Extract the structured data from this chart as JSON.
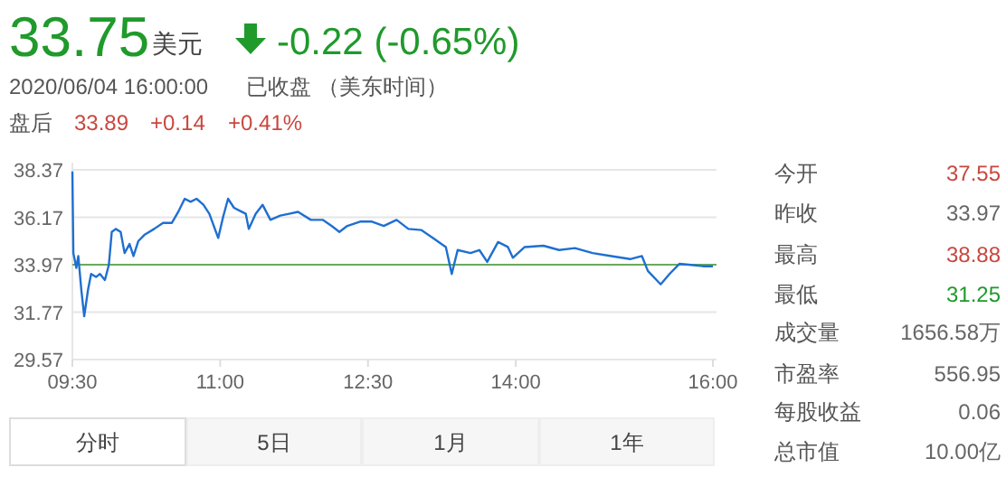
{
  "chart_data": {
    "type": "line",
    "color": "#1f6fd1",
    "grid": "y",
    "xlim": [
      9.5,
      16
    ],
    "ylim": [
      29.57,
      38.37
    ],
    "xticks": [
      {
        "value": 9.5,
        "label": "09:30"
      },
      {
        "value": 11,
        "label": "11:00"
      },
      {
        "value": 12.5,
        "label": "12:30"
      },
      {
        "value": 14,
        "label": "14:00"
      },
      {
        "value": 16,
        "label": "16:00"
      }
    ],
    "yticks": [
      {
        "value": 38.37,
        "label": "38.37"
      },
      {
        "value": 36.17,
        "label": "36.17"
      },
      {
        "value": 33.97,
        "label": "33.97"
      },
      {
        "value": 31.77,
        "label": "31.77"
      },
      {
        "value": 29.57,
        "label": "29.57"
      }
    ],
    "ref_lines": [
      {
        "axis": "y",
        "value": 33.97,
        "color": "#6aaa5a"
      }
    ],
    "x": [
      9.5,
      9.51,
      9.54,
      9.56,
      9.59,
      9.62,
      9.66,
      9.69,
      9.74,
      9.78,
      9.83,
      9.87,
      9.9,
      9.94,
      9.99,
      10.03,
      10.08,
      10.12,
      10.17,
      10.23,
      10.33,
      10.42,
      10.51,
      10.58,
      10.64,
      10.7,
      10.76,
      10.83,
      10.89,
      10.98,
      11.03,
      11.08,
      11.14,
      11.2,
      11.26,
      11.29,
      11.36,
      11.43,
      11.51,
      11.61,
      11.7,
      11.79,
      11.92,
      12.04,
      12.13,
      12.21,
      12.29,
      12.42,
      12.54,
      12.66,
      12.79,
      12.91,
      13.04,
      13.16,
      13.29,
      13.35,
      13.41,
      13.54,
      13.63,
      13.71,
      13.82,
      13.92,
      13.97,
      14.09,
      14.28,
      14.44,
      14.6,
      14.78,
      14.97,
      15.16,
      15.28,
      15.34,
      15.47,
      15.56,
      15.66,
      15.78,
      15.9,
      16
    ],
    "values": [
      38.3,
      34.51,
      33.82,
      34.37,
      32.84,
      31.58,
      32.84,
      33.54,
      33.4,
      33.54,
      33.26,
      33.96,
      35.49,
      35.63,
      35.49,
      34.51,
      34.93,
      34.37,
      35.07,
      35.35,
      35.63,
      35.91,
      35.91,
      36.47,
      37.03,
      36.89,
      37.03,
      36.75,
      36.33,
      35.21,
      36.19,
      37.03,
      36.61,
      36.47,
      36.33,
      35.63,
      36.33,
      36.75,
      36.05,
      36.25,
      36.33,
      36.42,
      36.05,
      36.05,
      35.77,
      35.49,
      35.77,
      35.97,
      35.97,
      35.77,
      36.05,
      35.63,
      35.58,
      35.21,
      34.79,
      33.54,
      34.65,
      34.51,
      34.65,
      34.1,
      35.02,
      34.79,
      34.29,
      34.79,
      34.85,
      34.65,
      34.74,
      34.51,
      34.37,
      34.23,
      34.37,
      33.68,
      33.06,
      33.54,
      34.01,
      33.96,
      33.9,
      33.9
    ],
    "annotations": [
      "33.75",
      "美元",
      "-0.22 (-0.65%)",
      "2020/06/04 16:00:00",
      "已收盘 （美东时间）",
      "盘后",
      "33.89",
      "+0.14",
      "+0.41%",
      "今开",
      "37.55",
      "昨收",
      "33.97",
      "最高",
      "38.88",
      "最低",
      "31.25",
      "成交量",
      "1656.58万",
      "市盈率",
      "556.95",
      "每股收益",
      "0.06",
      "总市值",
      "10.00亿",
      "分时",
      "5日",
      "1月",
      "1年"
    ]
  }
}
